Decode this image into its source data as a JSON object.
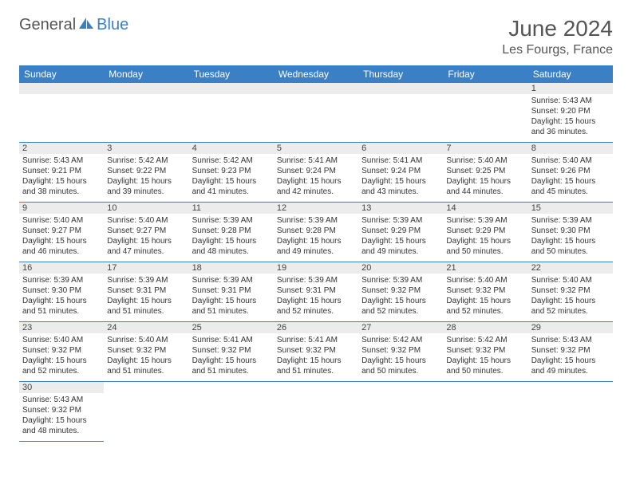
{
  "logo": {
    "general": "General",
    "blue": "Blue",
    "sail_color": "#3b7fc4"
  },
  "header": {
    "title": "June 2024",
    "location": "Les Fourgs, France"
  },
  "colors": {
    "header_bg": "#3b7fc4",
    "header_fg": "#ffffff",
    "daynum_bg": "#ececec",
    "border": "#3b7fc4"
  },
  "weekdays": [
    "Sunday",
    "Monday",
    "Tuesday",
    "Wednesday",
    "Thursday",
    "Friday",
    "Saturday"
  ],
  "weeks": [
    [
      null,
      null,
      null,
      null,
      null,
      null,
      {
        "n": "1",
        "sr": "5:43 AM",
        "ss": "9:20 PM",
        "dl": "15 hours and 36 minutes."
      }
    ],
    [
      {
        "n": "2",
        "sr": "5:43 AM",
        "ss": "9:21 PM",
        "dl": "15 hours and 38 minutes."
      },
      {
        "n": "3",
        "sr": "5:42 AM",
        "ss": "9:22 PM",
        "dl": "15 hours and 39 minutes."
      },
      {
        "n": "4",
        "sr": "5:42 AM",
        "ss": "9:23 PM",
        "dl": "15 hours and 41 minutes."
      },
      {
        "n": "5",
        "sr": "5:41 AM",
        "ss": "9:24 PM",
        "dl": "15 hours and 42 minutes."
      },
      {
        "n": "6",
        "sr": "5:41 AM",
        "ss": "9:24 PM",
        "dl": "15 hours and 43 minutes."
      },
      {
        "n": "7",
        "sr": "5:40 AM",
        "ss": "9:25 PM",
        "dl": "15 hours and 44 minutes."
      },
      {
        "n": "8",
        "sr": "5:40 AM",
        "ss": "9:26 PM",
        "dl": "15 hours and 45 minutes."
      }
    ],
    [
      {
        "n": "9",
        "sr": "5:40 AM",
        "ss": "9:27 PM",
        "dl": "15 hours and 46 minutes."
      },
      {
        "n": "10",
        "sr": "5:40 AM",
        "ss": "9:27 PM",
        "dl": "15 hours and 47 minutes."
      },
      {
        "n": "11",
        "sr": "5:39 AM",
        "ss": "9:28 PM",
        "dl": "15 hours and 48 minutes."
      },
      {
        "n": "12",
        "sr": "5:39 AM",
        "ss": "9:28 PM",
        "dl": "15 hours and 49 minutes."
      },
      {
        "n": "13",
        "sr": "5:39 AM",
        "ss": "9:29 PM",
        "dl": "15 hours and 49 minutes."
      },
      {
        "n": "14",
        "sr": "5:39 AM",
        "ss": "9:29 PM",
        "dl": "15 hours and 50 minutes."
      },
      {
        "n": "15",
        "sr": "5:39 AM",
        "ss": "9:30 PM",
        "dl": "15 hours and 50 minutes."
      }
    ],
    [
      {
        "n": "16",
        "sr": "5:39 AM",
        "ss": "9:30 PM",
        "dl": "15 hours and 51 minutes."
      },
      {
        "n": "17",
        "sr": "5:39 AM",
        "ss": "9:31 PM",
        "dl": "15 hours and 51 minutes."
      },
      {
        "n": "18",
        "sr": "5:39 AM",
        "ss": "9:31 PM",
        "dl": "15 hours and 51 minutes."
      },
      {
        "n": "19",
        "sr": "5:39 AM",
        "ss": "9:31 PM",
        "dl": "15 hours and 52 minutes."
      },
      {
        "n": "20",
        "sr": "5:39 AM",
        "ss": "9:32 PM",
        "dl": "15 hours and 52 minutes."
      },
      {
        "n": "21",
        "sr": "5:40 AM",
        "ss": "9:32 PM",
        "dl": "15 hours and 52 minutes."
      },
      {
        "n": "22",
        "sr": "5:40 AM",
        "ss": "9:32 PM",
        "dl": "15 hours and 52 minutes."
      }
    ],
    [
      {
        "n": "23",
        "sr": "5:40 AM",
        "ss": "9:32 PM",
        "dl": "15 hours and 52 minutes."
      },
      {
        "n": "24",
        "sr": "5:40 AM",
        "ss": "9:32 PM",
        "dl": "15 hours and 51 minutes."
      },
      {
        "n": "25",
        "sr": "5:41 AM",
        "ss": "9:32 PM",
        "dl": "15 hours and 51 minutes."
      },
      {
        "n": "26",
        "sr": "5:41 AM",
        "ss": "9:32 PM",
        "dl": "15 hours and 51 minutes."
      },
      {
        "n": "27",
        "sr": "5:42 AM",
        "ss": "9:32 PM",
        "dl": "15 hours and 50 minutes."
      },
      {
        "n": "28",
        "sr": "5:42 AM",
        "ss": "9:32 PM",
        "dl": "15 hours and 50 minutes."
      },
      {
        "n": "29",
        "sr": "5:43 AM",
        "ss": "9:32 PM",
        "dl": "15 hours and 49 minutes."
      }
    ],
    [
      {
        "n": "30",
        "sr": "5:43 AM",
        "ss": "9:32 PM",
        "dl": "15 hours and 48 minutes."
      },
      null,
      null,
      null,
      null,
      null,
      null
    ]
  ],
  "labels": {
    "sunrise": "Sunrise:",
    "sunset": "Sunset:",
    "daylight": "Daylight:"
  }
}
